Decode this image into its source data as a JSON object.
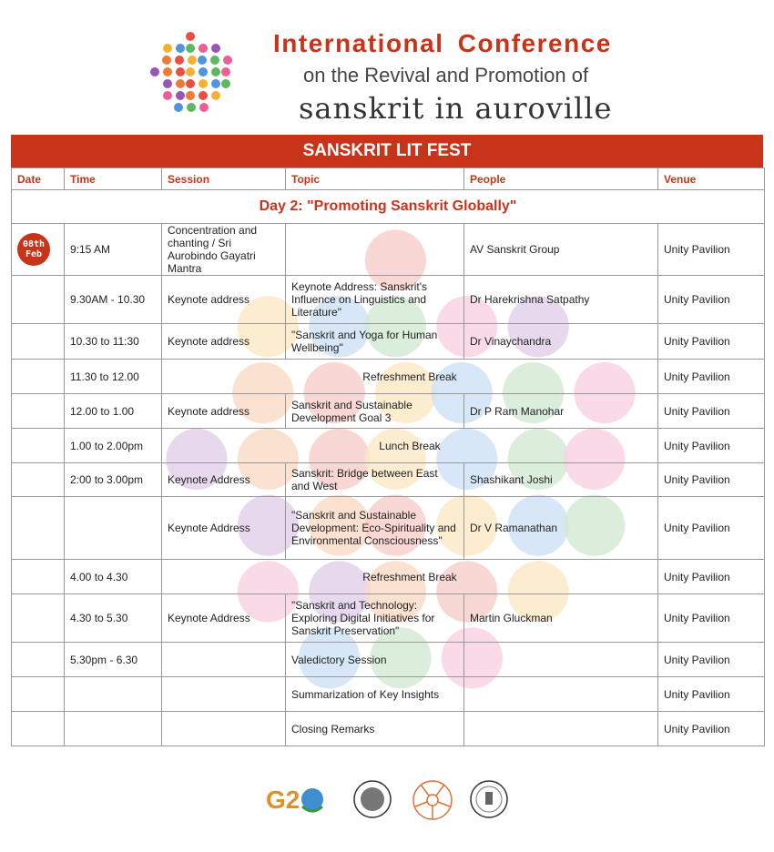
{
  "header": {
    "title": "International  Conference",
    "subtitle": "on the Revival and Promotion of",
    "brand": "sanskrit in auroville"
  },
  "banner": "SANSKRIT LIT FEST",
  "columns": [
    "Date",
    "Time",
    "Session",
    "Topic",
    "People",
    "Venue"
  ],
  "day_title": "Day 2: \"Promoting Sanskrit Globally\"",
  "date_badge": {
    "line1": "08th",
    "line2": "Feb"
  },
  "rows": [
    {
      "time": "9:15 AM",
      "session": "Concentration and chanting / Sri Aurobindo Gayatri Mantra",
      "topic": "",
      "people": "AV Sanskrit Group",
      "venue": "Unity Pavilion"
    },
    {
      "time": "9.30AM - 10.30",
      "session": "Keynote address",
      "topic": "Keynote Address: Sanskrit's Influence on Linguistics and Literature\"",
      "people": "Dr Harekrishna Satpathy",
      "venue": "Unity Pavilion"
    },
    {
      "time": "10.30 to 11:30",
      "session": "Keynote address",
      "topic": "\"Sanskrit and Yoga for Human Wellbeing\"",
      "people": "Dr Vinaychandra",
      "venue": "Unity Pavilion"
    },
    {
      "time": "11.30 to 12.00",
      "span": "Refreshment Break",
      "venue": "Unity Pavilion"
    },
    {
      "time": "12.00 to 1.00",
      "session": "Keynote address",
      "topic": "Sanskrit and Sustainable Development Goal 3",
      "people": "Dr P Ram Manohar",
      "venue": "Unity Pavilion"
    },
    {
      "time": "1.00 to 2.00pm",
      "span": "Lunch Break",
      "venue": "Unity Pavilion"
    },
    {
      "time": "2:00 to 3.00pm",
      "session": "Keynote Address",
      "topic": "Sanskrit: Bridge between East and West",
      "people": "Shashikant Joshi",
      "venue": "Unity Pavilion"
    },
    {
      "time": "",
      "session": "Keynote Address",
      "topic": "\"Sanskrit and Sustainable Development: Eco-Spirituality and Environmental Consciousness\"",
      "people": "Dr V Ramanathan",
      "venue": "Unity Pavilion"
    },
    {
      "time": "4.00 to 4.30",
      "span": "Refreshment Break",
      "venue": "Unity Pavilion"
    },
    {
      "time": "4.30 to 5.30",
      "session": "Keynote Address",
      "topic": "\"Sanskrit and Technology: Exploring Digital Initiatives for Sanskrit Preservation\"",
      "people": "Martin Gluckman",
      "venue": "Unity Pavilion"
    },
    {
      "time": "5.30pm - 6.30",
      "session": "",
      "topic": "Valedictory Session",
      "people": "",
      "venue": "Unity Pavilion"
    },
    {
      "time": "",
      "session": "",
      "topic": "Summarization of Key Insights",
      "people": "",
      "venue": "Unity Pavilion"
    },
    {
      "time": "",
      "session": "",
      "topic": "Closing Remarks",
      "people": "",
      "venue": "Unity Pavilion"
    }
  ],
  "footer_logos": [
    "g20-logo",
    "sri-aurobindo-seal",
    "auroville-symbol",
    "government-emblem-seal"
  ],
  "colors": {
    "accent": "#c8341a"
  }
}
